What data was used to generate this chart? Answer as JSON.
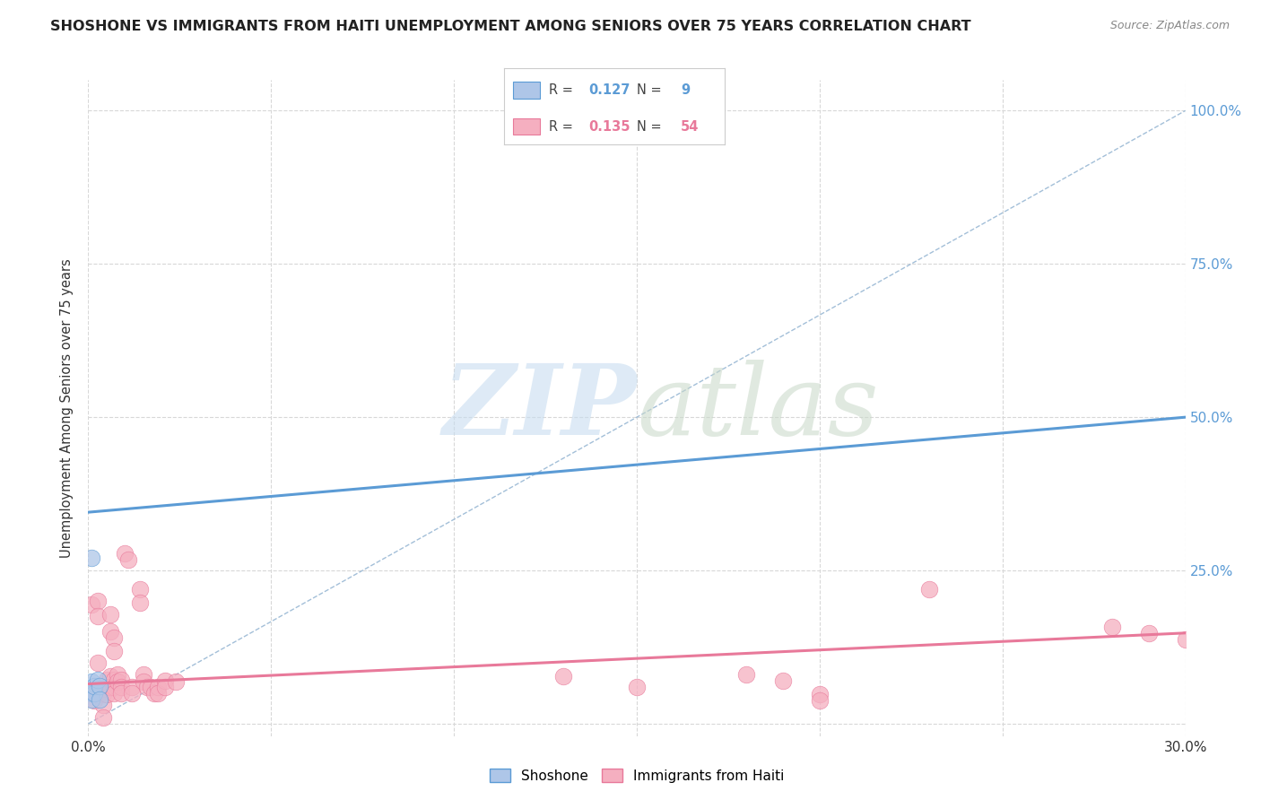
{
  "title": "SHOSHONE VS IMMIGRANTS FROM HAITI UNEMPLOYMENT AMONG SENIORS OVER 75 YEARS CORRELATION CHART",
  "source": "Source: ZipAtlas.com",
  "ylabel": "Unemployment Among Seniors over 75 years",
  "xlim": [
    0.0,
    0.3
  ],
  "ylim": [
    -0.02,
    1.05
  ],
  "shoshone_color": "#aec6e8",
  "haiti_color": "#f5afc0",
  "shoshone_line_color": "#5b9bd5",
  "haiti_line_color": "#e8799a",
  "ref_line_color": "#99b8d4",
  "legend_R_shoshone": "0.127",
  "legend_N_shoshone": "9",
  "legend_R_haiti": "0.135",
  "legend_N_haiti": "54",
  "shoshone_points": [
    [
      0.0008,
      0.27
    ],
    [
      0.0008,
      0.068
    ],
    [
      0.0008,
      0.05
    ],
    [
      0.0008,
      0.04
    ],
    [
      0.0015,
      0.05
    ],
    [
      0.0015,
      0.062
    ],
    [
      0.0025,
      0.072
    ],
    [
      0.003,
      0.062
    ],
    [
      0.003,
      0.04
    ]
  ],
  "haiti_points": [
    [
      0.0008,
      0.195
    ],
    [
      0.0015,
      0.05
    ],
    [
      0.0015,
      0.038
    ],
    [
      0.0025,
      0.2
    ],
    [
      0.0025,
      0.175
    ],
    [
      0.0025,
      0.1
    ],
    [
      0.0032,
      0.05
    ],
    [
      0.004,
      0.06
    ],
    [
      0.004,
      0.048
    ],
    [
      0.004,
      0.03
    ],
    [
      0.004,
      0.01
    ],
    [
      0.005,
      0.072
    ],
    [
      0.005,
      0.06
    ],
    [
      0.005,
      0.048
    ],
    [
      0.006,
      0.178
    ],
    [
      0.006,
      0.15
    ],
    [
      0.006,
      0.078
    ],
    [
      0.006,
      0.06
    ],
    [
      0.007,
      0.14
    ],
    [
      0.007,
      0.118
    ],
    [
      0.007,
      0.072
    ],
    [
      0.007,
      0.06
    ],
    [
      0.007,
      0.05
    ],
    [
      0.008,
      0.08
    ],
    [
      0.008,
      0.068
    ],
    [
      0.009,
      0.072
    ],
    [
      0.009,
      0.06
    ],
    [
      0.009,
      0.05
    ],
    [
      0.01,
      0.278
    ],
    [
      0.011,
      0.268
    ],
    [
      0.012,
      0.06
    ],
    [
      0.012,
      0.05
    ],
    [
      0.014,
      0.22
    ],
    [
      0.014,
      0.198
    ],
    [
      0.015,
      0.08
    ],
    [
      0.015,
      0.068
    ],
    [
      0.016,
      0.06
    ],
    [
      0.017,
      0.06
    ],
    [
      0.018,
      0.05
    ],
    [
      0.019,
      0.06
    ],
    [
      0.019,
      0.05
    ],
    [
      0.021,
      0.07
    ],
    [
      0.021,
      0.06
    ],
    [
      0.024,
      0.068
    ],
    [
      0.13,
      0.078
    ],
    [
      0.15,
      0.06
    ],
    [
      0.18,
      0.08
    ],
    [
      0.19,
      0.07
    ],
    [
      0.2,
      0.048
    ],
    [
      0.2,
      0.038
    ],
    [
      0.23,
      0.22
    ],
    [
      0.28,
      0.158
    ],
    [
      0.29,
      0.148
    ],
    [
      0.3,
      0.138
    ]
  ],
  "shoshone_trend_x": [
    0.0,
    0.3
  ],
  "shoshone_trend_y": [
    0.345,
    0.5
  ],
  "haiti_trend_x": [
    0.0,
    0.3
  ],
  "haiti_trend_y": [
    0.065,
    0.148
  ],
  "ref_line_x": [
    0.0,
    0.3
  ],
  "ref_line_y": [
    0.0,
    1.0
  ],
  "grid_color": "#d8d8d8",
  "background_color": "#ffffff",
  "dot_size": 180,
  "right_ytick_vals": [
    0.0,
    0.25,
    0.5,
    0.75,
    1.0
  ],
  "right_yticklabels": [
    "",
    "25.0%",
    "50.0%",
    "75.0%",
    "100.0%"
  ]
}
